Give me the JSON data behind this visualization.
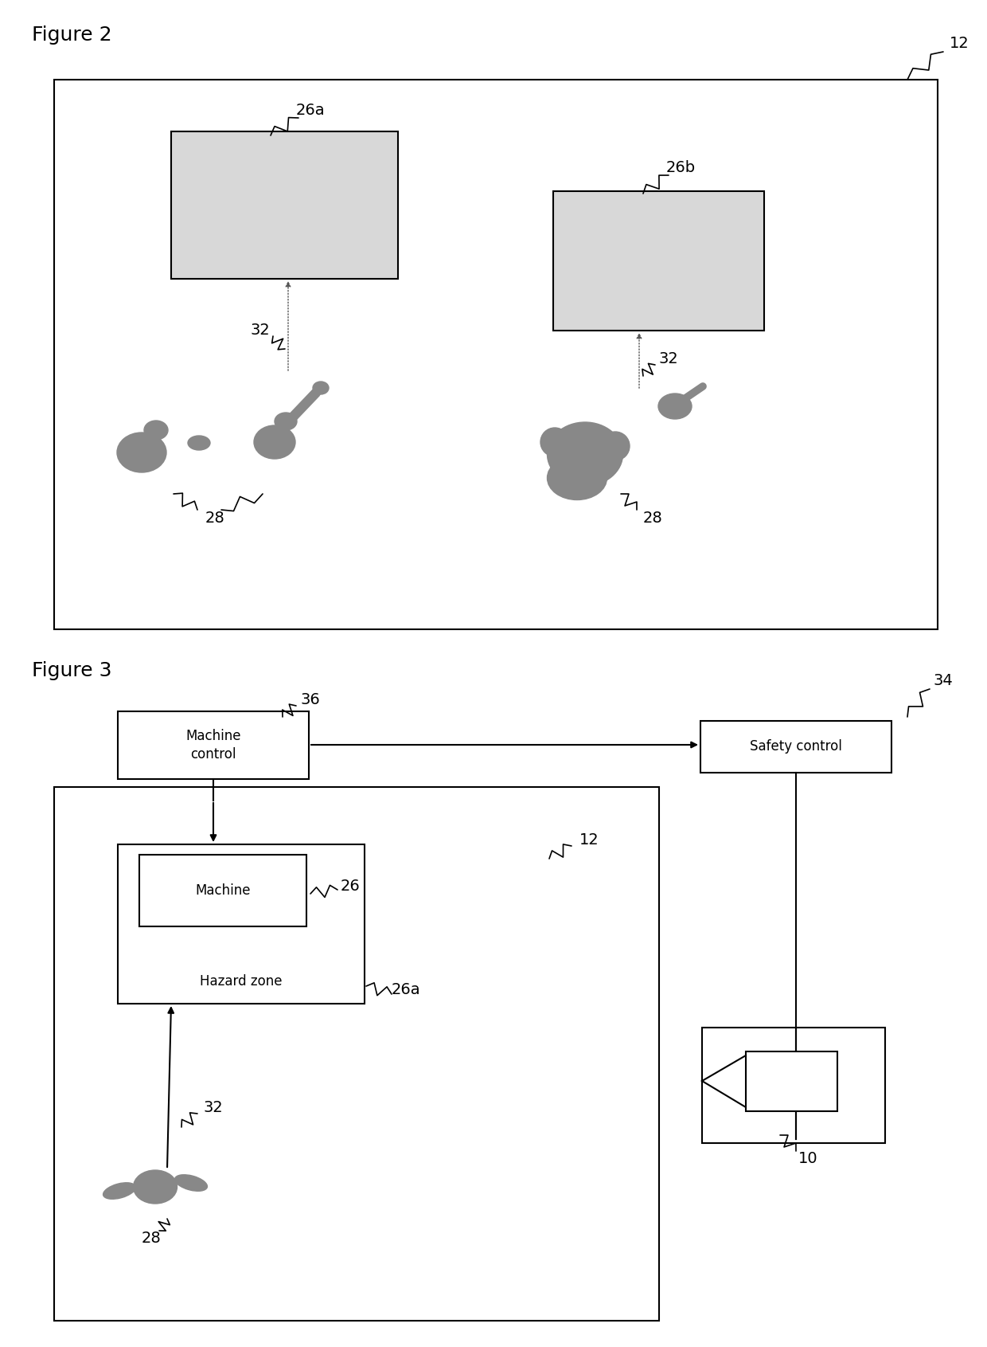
{
  "fig_width": 12.4,
  "fig_height": 16.91,
  "bg_color": "#ffffff",
  "fig2_title": "Figure 2",
  "fig3_title": "Figure 3",
  "label_12": "12",
  "label_26a_f2": "26a",
  "label_26b_f2": "26b",
  "label_32_f2": "32",
  "label_28_f2": "28",
  "label_36": "36",
  "label_34": "34",
  "label_26": "26",
  "label_26a_f3": "26a",
  "label_12_f3": "12",
  "label_32_f3": "32",
  "label_28_f3": "28",
  "label_10": "10",
  "machine_control_text": "Machine\ncontrol",
  "safety_control_text": "Safety control",
  "machine_text": "Machine",
  "hazard_zone_text": "Hazard zone",
  "stipple_color": "#d8d8d8",
  "box_edge_color": "#000000",
  "font_size_label": 14,
  "font_size_title": 18,
  "font_size_box": 12,
  "lw_main": 1.5,
  "lw_thin": 1.2,
  "figure_color": "#888888"
}
